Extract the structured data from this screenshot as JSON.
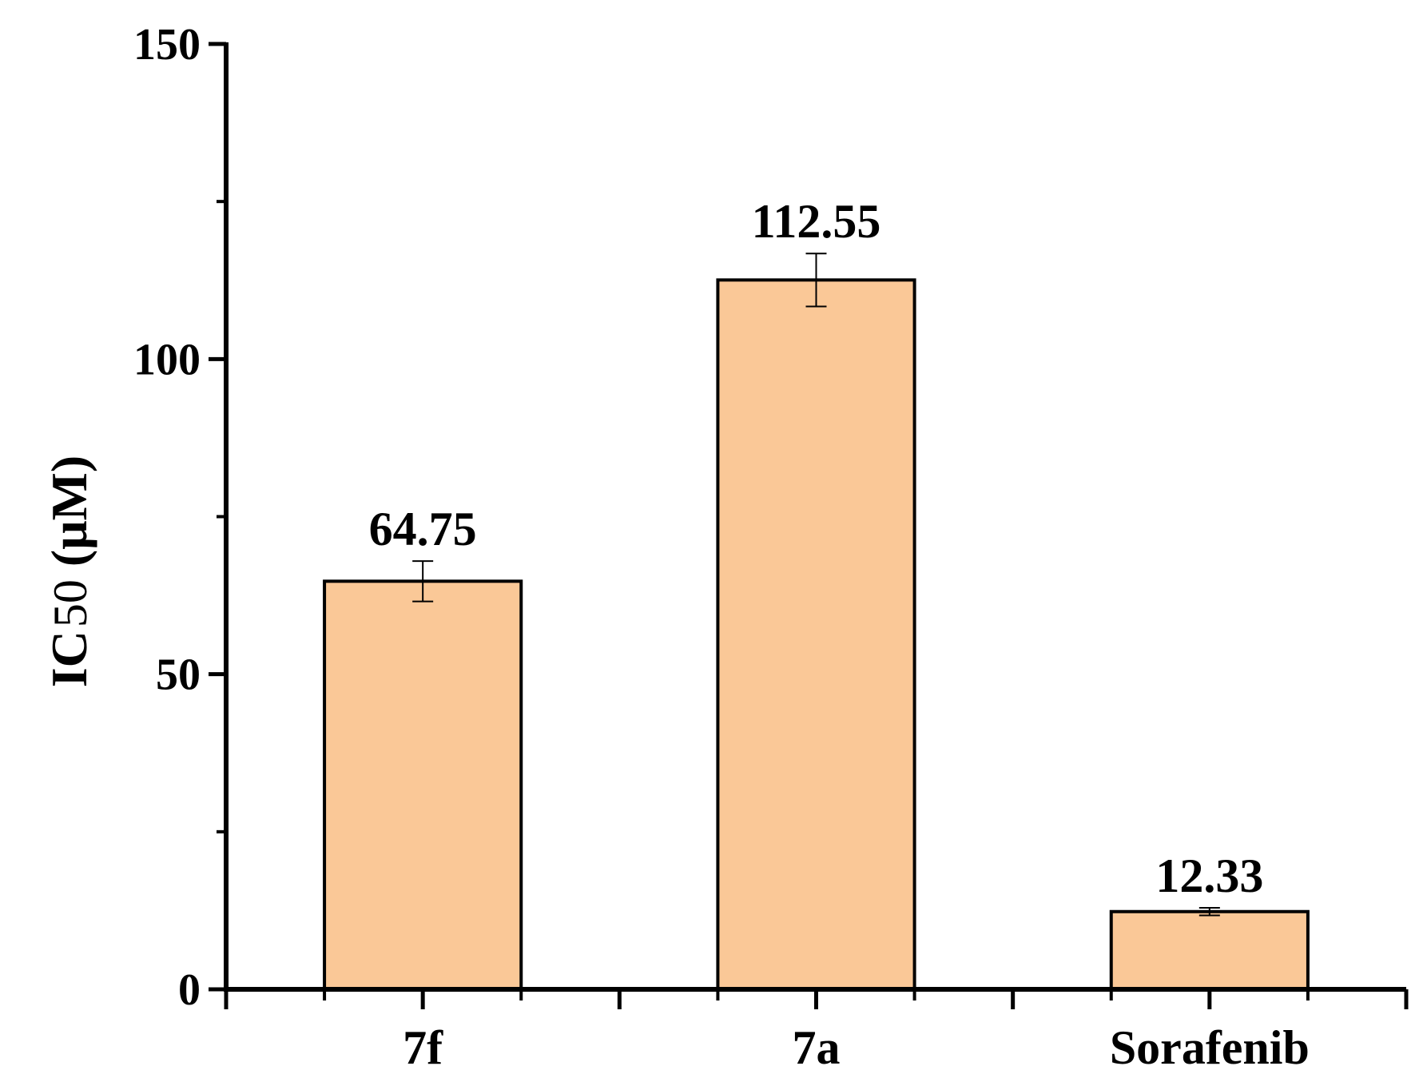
{
  "chart_data": {
    "type": "bar",
    "categories": [
      "7f",
      "7a",
      "Sorafenib"
    ],
    "values": [
      64.75,
      112.55,
      12.33
    ],
    "errors": [
      3.2,
      4.2,
      0.6
    ],
    "data_labels": [
      "64.75",
      "112.55",
      "12.33"
    ],
    "title": "",
    "xlabel": "",
    "ylabel": "IC50 (μM)",
    "ylabel_main": "IC",
    "ylabel_sub": "50",
    "ylabel_unit": " (μM)",
    "ylim": [
      0,
      150
    ],
    "y_major_ticks": [
      0,
      50,
      100,
      150
    ],
    "y_minor_ticks": [
      25,
      75,
      125
    ],
    "grid": false,
    "legend": "none",
    "bar_color": "#FAC897",
    "bar_edge_color": "#000000"
  }
}
